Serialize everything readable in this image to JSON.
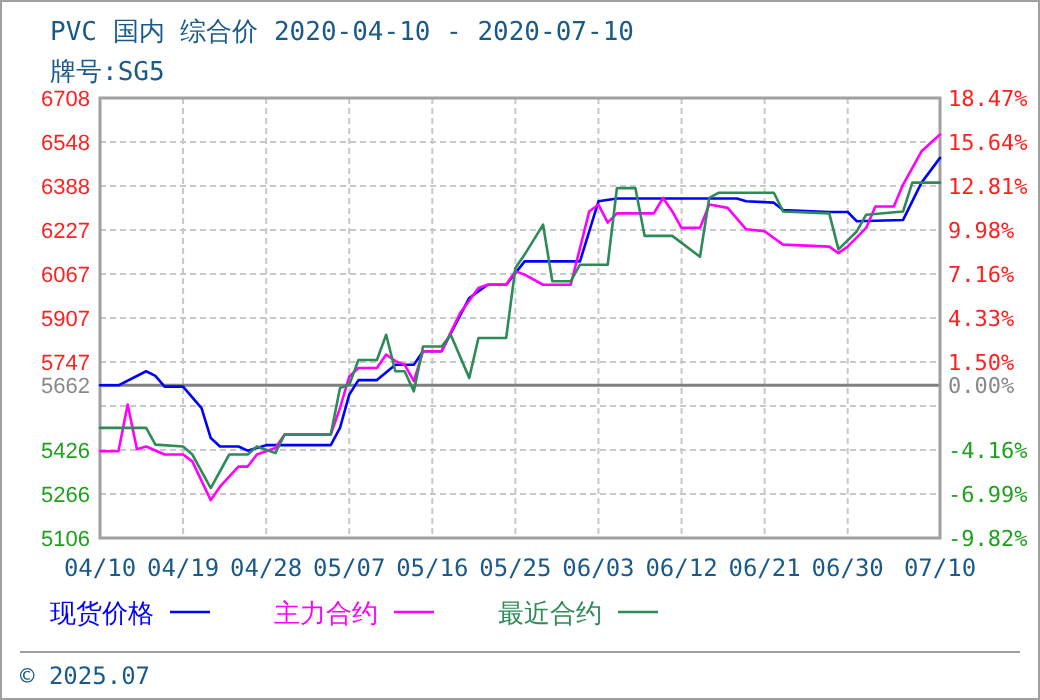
{
  "chart_data": {
    "type": "line",
    "title": "PVC 国内 综合价 2020-04-10 - 2020-07-10",
    "subtitle": "牌号:SG5",
    "annotations": [
      "© 2025.07"
    ],
    "series": [
      {
        "name": "现货价格",
        "color": "#0000ff",
        "x": [
          "2020-04-10",
          "2020-04-12",
          "2020-04-15",
          "2020-04-16",
          "2020-04-17",
          "2020-04-19",
          "2020-04-21",
          "2020-04-22",
          "2020-04-23",
          "2020-04-25",
          "2020-04-26",
          "2020-04-28",
          "2020-05-05",
          "2020-05-06",
          "2020-05-07",
          "2020-05-08",
          "2020-05-10",
          "2020-05-12",
          "2020-05-14",
          "2020-05-15",
          "2020-05-17",
          "2020-05-20",
          "2020-05-22",
          "2020-05-24",
          "2020-05-26",
          "2020-06-01",
          "2020-06-03",
          "2020-06-05",
          "2020-06-18",
          "2020-06-19",
          "2020-06-22",
          "2020-06-23",
          "2020-06-28",
          "2020-06-30",
          "2020-07-01",
          "2020-07-06",
          "2020-07-08",
          "2020-07-10"
        ],
        "values": [
          5662,
          5662,
          5713,
          5696,
          5657,
          5657,
          5579,
          5470,
          5439,
          5439,
          5424,
          5444,
          5444,
          5507,
          5628,
          5681,
          5681,
          5737,
          5737,
          5786,
          5786,
          5980,
          6028,
          6028,
          6113,
          6113,
          6332,
          6342,
          6342,
          6332,
          6327,
          6300,
          6293,
          6293,
          6259,
          6264,
          6400,
          6490
        ]
      },
      {
        "name": "主力合约",
        "color": "#ff00ff",
        "x": [
          "2020-04-10",
          "2020-04-12",
          "2020-04-13",
          "2020-04-14",
          "2020-04-15",
          "2020-04-17",
          "2020-04-19",
          "2020-04-20",
          "2020-04-22",
          "2020-04-23",
          "2020-04-25",
          "2020-04-26",
          "2020-04-27",
          "2020-04-29",
          "2020-04-30",
          "2020-05-05",
          "2020-05-06",
          "2020-05-07",
          "2020-05-08",
          "2020-05-10",
          "2020-05-11",
          "2020-05-12",
          "2020-05-13",
          "2020-05-14",
          "2020-05-15",
          "2020-05-17",
          "2020-05-19",
          "2020-05-21",
          "2020-05-22",
          "2020-05-24",
          "2020-05-25",
          "2020-05-26",
          "2020-05-28",
          "2020-05-31",
          "2020-06-02",
          "2020-06-03",
          "2020-06-04",
          "2020-06-05",
          "2020-06-09",
          "2020-06-10",
          "2020-06-11",
          "2020-06-12",
          "2020-06-14",
          "2020-06-15",
          "2020-06-17",
          "2020-06-19",
          "2020-06-21",
          "2020-06-23",
          "2020-06-28",
          "2020-06-29",
          "2020-06-30",
          "2020-07-02",
          "2020-07-03",
          "2020-07-05",
          "2020-07-06",
          "2020-07-08",
          "2020-07-10"
        ],
        "values": [
          5422,
          5422,
          5592,
          5429,
          5439,
          5410,
          5410,
          5385,
          5244,
          5293,
          5366,
          5366,
          5410,
          5434,
          5483,
          5483,
          5579,
          5694,
          5725,
          5725,
          5774,
          5750,
          5737,
          5677,
          5786,
          5786,
          5924,
          6016,
          6028,
          6028,
          6077,
          6065,
          6028,
          6028,
          6295,
          6320,
          6254,
          6288,
          6288,
          6344,
          6295,
          6235,
          6235,
          6320,
          6308,
          6230,
          6223,
          6174,
          6167,
          6143,
          6167,
          6235,
          6313,
          6313,
          6393,
          6514,
          6575
        ]
      },
      {
        "name": "最近合约",
        "color": "#2e8b57",
        "x": [
          "2020-04-10",
          "2020-04-15",
          "2020-04-16",
          "2020-04-19",
          "2020-04-20",
          "2020-04-22",
          "2020-04-24",
          "2020-04-26",
          "2020-04-27",
          "2020-04-29",
          "2020-04-30",
          "2020-05-05",
          "2020-05-06",
          "2020-05-07",
          "2020-05-08",
          "2020-05-10",
          "2020-05-11",
          "2020-05-12",
          "2020-05-13",
          "2020-05-14",
          "2020-05-15",
          "2020-05-17",
          "2020-05-18",
          "2020-05-20",
          "2020-05-21",
          "2020-05-24",
          "2020-05-25",
          "2020-05-26",
          "2020-05-28",
          "2020-05-29",
          "2020-05-31",
          "2020-06-01",
          "2020-06-04",
          "2020-06-05",
          "2020-06-07",
          "2020-06-08",
          "2020-06-11",
          "2020-06-14",
          "2020-06-15",
          "2020-06-16",
          "2020-06-22",
          "2020-06-23",
          "2020-06-28",
          "2020-06-29",
          "2020-07-01",
          "2020-07-02",
          "2020-07-06",
          "2020-07-07",
          "2020-07-10"
        ],
        "values": [
          5507,
          5507,
          5446,
          5439,
          5410,
          5288,
          5410,
          5410,
          5439,
          5415,
          5483,
          5483,
          5652,
          5664,
          5754,
          5754,
          5846,
          5713,
          5713,
          5640,
          5803,
          5803,
          5846,
          5689,
          5834,
          5834,
          6089,
          6138,
          6247,
          6041,
          6041,
          6101,
          6101,
          6380,
          6380,
          6206,
          6206,
          6130,
          6344,
          6363,
          6363,
          6295,
          6288,
          6157,
          6223,
          6283,
          6295,
          6400,
          6400
        ]
      }
    ],
    "xlim": [
      "2020-04-10",
      "2020-07-10"
    ],
    "xticks": [
      {
        "value": "2020-04-10",
        "label": "04/10"
      },
      {
        "value": "2020-04-19",
        "label": "04/19"
      },
      {
        "value": "2020-04-28",
        "label": "04/28"
      },
      {
        "value": "2020-05-07",
        "label": "05/07"
      },
      {
        "value": "2020-05-16",
        "label": "05/16"
      },
      {
        "value": "2020-05-25",
        "label": "05/25"
      },
      {
        "value": "2020-06-03",
        "label": "06/03"
      },
      {
        "value": "2020-06-12",
        "label": "06/12"
      },
      {
        "value": "2020-06-21",
        "label": "06/21"
      },
      {
        "value": "2020-06-30",
        "label": "06/30"
      },
      {
        "value": "2020-07-10",
        "label": "07/10"
      }
    ],
    "ylim": [
      5106,
      6708
    ],
    "yticks": [
      6708,
      6548,
      6388,
      6227,
      6067,
      5907,
      5747,
      5662,
      {
        "value": 5587,
        "label": null
      },
      5426,
      5266,
      5106
    ],
    "y2lim": [
      -9.82,
      18.47
    ],
    "y2ticks": [
      {
        "value": 18.47,
        "label": "18.47%"
      },
      {
        "value": 15.64,
        "label": "15.64%"
      },
      {
        "value": 12.81,
        "label": "12.81%"
      },
      {
        "value": 9.98,
        "label": "9.98%"
      },
      {
        "value": 7.16,
        "label": "7.16%"
      },
      {
        "value": 4.33,
        "label": "4.33%"
      },
      {
        "value": 1.5,
        "label": "1.50%"
      },
      {
        "value": 0,
        "label": "0.00%"
      },
      {
        "value": -1.33,
        "label": null
      },
      {
        "value": -4.16,
        "label": "-4.16%"
      },
      {
        "value": -6.99,
        "label": "-6.99%"
      },
      {
        "value": -9.82,
        "label": "-9.82%"
      }
    ],
    "ref_lines": [
      {
        "axis": "y",
        "value": 5662,
        "color": "#808080"
      }
    ],
    "grid": true,
    "legend": "bottom",
    "line_style": "solid",
    "marker": "none"
  }
}
